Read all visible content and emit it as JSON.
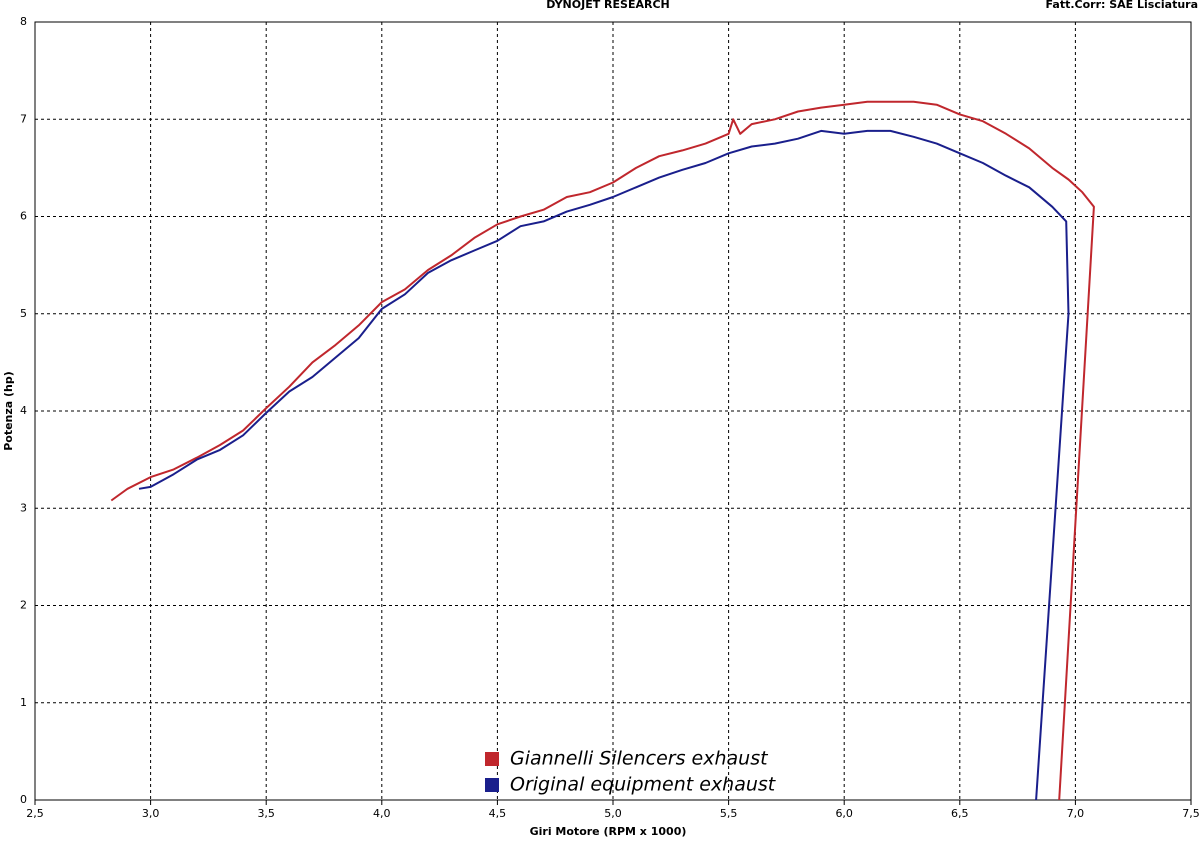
{
  "chart_data": {
    "type": "line",
    "title": "DYNOJET RESEARCH",
    "subtitle": "Fatt.Corr: SAE  Lisciatura",
    "x_label": "Giri Motore (RPM x 1000)",
    "y_label": "Potenza (hp)",
    "xlim": [
      2.5,
      7.5
    ],
    "ylim": [
      0,
      8
    ],
    "xticks": [
      {
        "value": 2.5,
        "label": "2,5"
      },
      {
        "value": 3.0,
        "label": "3,0"
      },
      {
        "value": 3.5,
        "label": "3,5"
      },
      {
        "value": 4.0,
        "label": "4,0"
      },
      {
        "value": 4.5,
        "label": "4,5"
      },
      {
        "value": 5.0,
        "label": "5,0"
      },
      {
        "value": 5.5,
        "label": "5,5"
      },
      {
        "value": 6.0,
        "label": "6,0"
      },
      {
        "value": 6.5,
        "label": "6,5"
      },
      {
        "value": 7.0,
        "label": "7,0"
      },
      {
        "value": 7.5,
        "label": "7,5"
      }
    ],
    "yticks": [
      0,
      1,
      2,
      3,
      4,
      5,
      6,
      7,
      8
    ],
    "grid": true,
    "legend": "bottom",
    "series": [
      {
        "name": "Giannelli Silencers exhaust",
        "color": "#c0272d",
        "x": [
          2.83,
          2.9,
          3.0,
          3.1,
          3.2,
          3.3,
          3.4,
          3.5,
          3.6,
          3.7,
          3.8,
          3.9,
          4.0,
          4.1,
          4.2,
          4.3,
          4.4,
          4.5,
          4.6,
          4.7,
          4.8,
          4.9,
          5.0,
          5.1,
          5.2,
          5.3,
          5.4,
          5.5,
          5.52,
          5.55,
          5.6,
          5.7,
          5.8,
          5.9,
          6.0,
          6.1,
          6.2,
          6.3,
          6.4,
          6.5,
          6.6,
          6.7,
          6.8,
          6.9,
          6.97,
          7.03,
          7.08,
          6.93
        ],
        "values": [
          3.08,
          3.2,
          3.32,
          3.4,
          3.52,
          3.65,
          3.8,
          4.03,
          4.25,
          4.5,
          4.68,
          4.88,
          5.12,
          5.25,
          5.45,
          5.6,
          5.78,
          5.92,
          6.0,
          6.07,
          6.2,
          6.25,
          6.35,
          6.5,
          6.62,
          6.68,
          6.75,
          6.85,
          7.0,
          6.85,
          6.95,
          7.0,
          7.08,
          7.12,
          7.15,
          7.18,
          7.18,
          7.18,
          7.15,
          7.05,
          6.98,
          6.85,
          6.7,
          6.5,
          6.38,
          6.25,
          6.1,
          0
        ]
      },
      {
        "name": "Original equipment exhaust",
        "color": "#1a1f8c",
        "x": [
          2.95,
          3.0,
          3.1,
          3.2,
          3.3,
          3.4,
          3.5,
          3.6,
          3.7,
          3.8,
          3.9,
          4.0,
          4.1,
          4.2,
          4.3,
          4.4,
          4.5,
          4.6,
          4.7,
          4.8,
          4.9,
          5.0,
          5.1,
          5.2,
          5.3,
          5.4,
          5.5,
          5.6,
          5.7,
          5.8,
          5.9,
          6.0,
          6.1,
          6.2,
          6.3,
          6.4,
          6.5,
          6.6,
          6.7,
          6.8,
          6.9,
          6.96,
          6.97,
          6.83
        ],
        "values": [
          3.2,
          3.22,
          3.35,
          3.5,
          3.6,
          3.75,
          3.98,
          4.2,
          4.35,
          4.55,
          4.75,
          5.05,
          5.2,
          5.42,
          5.55,
          5.65,
          5.75,
          5.9,
          5.95,
          6.05,
          6.12,
          6.2,
          6.3,
          6.4,
          6.48,
          6.55,
          6.65,
          6.72,
          6.75,
          6.8,
          6.88,
          6.85,
          6.88,
          6.88,
          6.82,
          6.75,
          6.65,
          6.55,
          6.42,
          6.3,
          6.1,
          5.95,
          5.0,
          0
        ]
      }
    ]
  }
}
